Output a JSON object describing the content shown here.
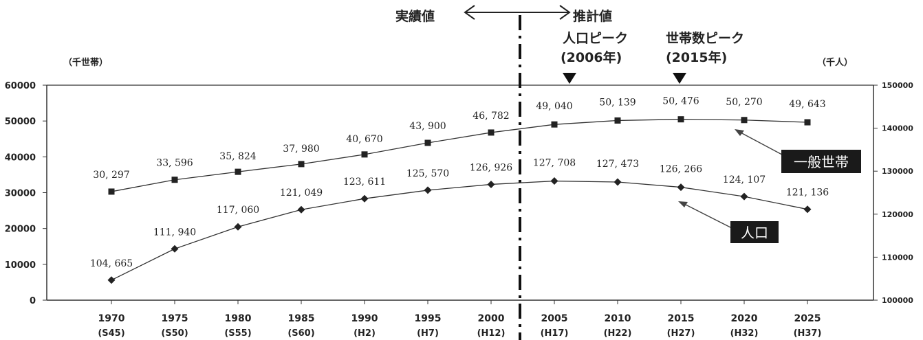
{
  "chart_data": {
    "type": "line",
    "x": [
      "1970",
      "1975",
      "1980",
      "1985",
      "1990",
      "1995",
      "2000",
      "2005",
      "2010",
      "2015",
      "2020",
      "2025"
    ],
    "x_era": [
      "(S45)",
      "(S50)",
      "(S55)",
      "(S60)",
      "(H2)",
      "(H7)",
      "(H12)",
      "(H17)",
      "(H22)",
      "(H27)",
      "(H32)",
      "(H37)"
    ],
    "left_axis": {
      "unit": "（千世帯）",
      "range": [
        0,
        60000
      ],
      "ticks": [
        "0",
        "10000",
        "20000",
        "30000",
        "40000",
        "50000",
        "60000"
      ]
    },
    "right_axis": {
      "unit": "（千人）",
      "range": [
        100000,
        150000
      ],
      "ticks": [
        "100000",
        "110000",
        "120000",
        "130000",
        "140000",
        "150000"
      ]
    },
    "series": [
      {
        "name": "一般世帯",
        "axis": "left",
        "marker": "square",
        "values": [
          30297,
          33596,
          35824,
          37980,
          40670,
          43900,
          46782,
          49040,
          50139,
          50476,
          50270,
          49643
        ],
        "labels": [
          "30, 297",
          "33, 596",
          "35, 824",
          "37, 980",
          "40, 670",
          "43, 900",
          "46, 782",
          "49, 040",
          "50, 139",
          "50, 476",
          "50, 270",
          "49, 643"
        ]
      },
      {
        "name": "人口",
        "axis": "right",
        "marker": "diamond",
        "values": [
          104665,
          111940,
          117060,
          121049,
          123611,
          125570,
          126926,
          127708,
          127473,
          126266,
          124107,
          121136
        ],
        "labels": [
          "104, 665",
          "111, 940",
          "117, 060",
          "121, 049",
          "123, 611",
          "125, 570",
          "126, 926",
          "127, 708",
          "127, 473",
          "126, 266",
          "124, 107",
          "121, 136"
        ]
      }
    ],
    "annotations": {
      "actual": "実績値",
      "estimate": "推計値",
      "pop_peak_line1": "人口ピーク",
      "pop_peak_line2": "(2006年)",
      "hh_peak_line1": "世帯数ピーク",
      "hh_peak_line2": "(2015年)"
    },
    "grid": false,
    "colors": {
      "line": "#333333",
      "callout_bg": "#1a1a1a",
      "callout_text": "#ffffff"
    }
  }
}
